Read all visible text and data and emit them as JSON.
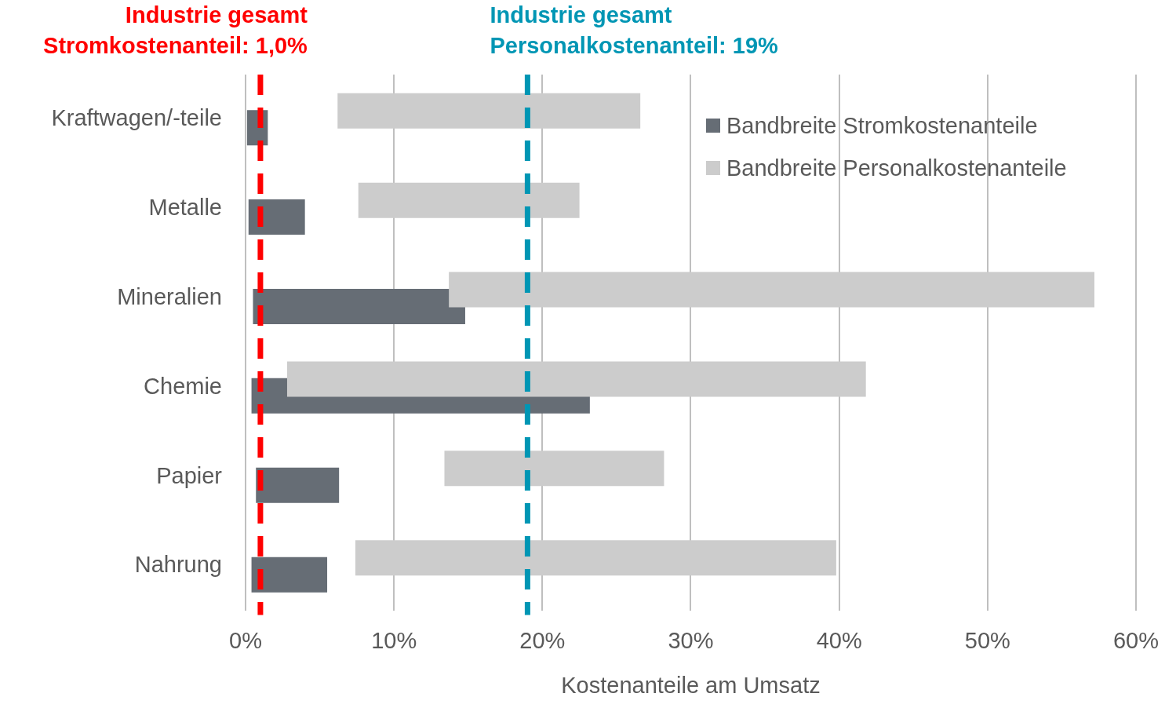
{
  "chart_data": {
    "type": "bar",
    "orientation": "horizontal",
    "xlabel": "Kostenanteile am Umsatz",
    "categories": [
      "Kraftwagen/-teile",
      "Metalle",
      "Mineralien",
      "Chemie",
      "Papier",
      "Nahrung"
    ],
    "series": [
      {
        "name": "Bandbreite Stromkostenanteile",
        "color": "#666d75",
        "base": [
          0.1,
          0.2,
          0.5,
          0.4,
          0.7,
          0.4
        ],
        "values": [
          1.4,
          3.8,
          14.3,
          22.8,
          5.6,
          5.1
        ]
      },
      {
        "name": "Bandbreite Personalkostenanteile",
        "color": "#cccccc",
        "base": [
          6.2,
          7.6,
          13.7,
          2.8,
          13.4,
          7.4
        ],
        "values": [
          20.4,
          14.9,
          43.5,
          39.0,
          14.8,
          32.4
        ]
      }
    ],
    "xlim": [
      0,
      60
    ],
    "xticks": [
      {
        "value": 0,
        "label": "0%"
      },
      {
        "value": 10,
        "label": "10%"
      },
      {
        "value": 20,
        "label": "20%"
      },
      {
        "value": 30,
        "label": "30%"
      },
      {
        "value": 40,
        "label": "40%"
      },
      {
        "value": 50,
        "label": "50%"
      },
      {
        "value": 60,
        "label": "60%"
      }
    ],
    "ref_lines": [
      {
        "axis": "x",
        "value": 1.0,
        "label": "Industrie gesamt\nStromkostenanteil: 1,0%",
        "color": "#ff0000",
        "line_style": "dashed"
      },
      {
        "axis": "x",
        "value": 19,
        "label": "Industrie gesamt\nPersonalkostenanteil: 19%",
        "color": "#0096b4",
        "line_style": "dashed"
      }
    ],
    "grid": "x",
    "legend": "top right"
  }
}
